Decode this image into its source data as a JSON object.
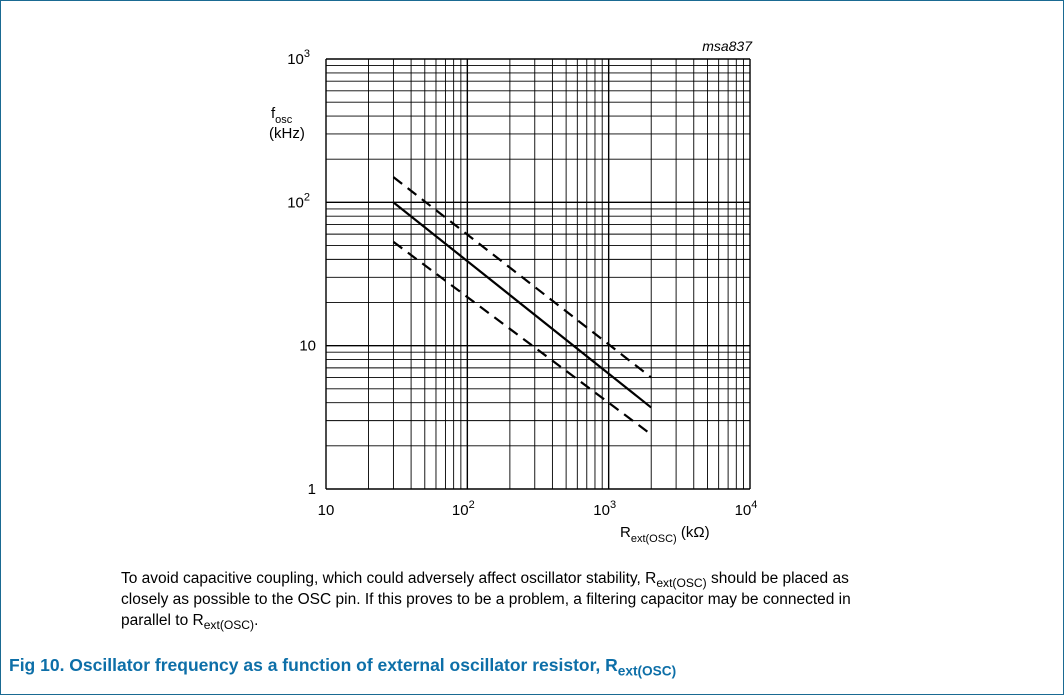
{
  "chart_data": {
    "type": "line",
    "id_label": "msa837",
    "ylabel_main": "f",
    "ylabel_sub": "osc",
    "ylabel_unit": "(kHz)",
    "xlabel_main": "R",
    "xlabel_sub": "ext(OSC)",
    "xlabel_unit": "(kΩ)",
    "x_scale": "log",
    "y_scale": "log",
    "xlim": [
      10,
      10000
    ],
    "ylim": [
      1,
      1000
    ],
    "grid": true,
    "x_ticks": [
      {
        "base": "10",
        "exp": ""
      },
      {
        "base": "10",
        "exp": "2"
      },
      {
        "base": "10",
        "exp": "3"
      },
      {
        "base": "10",
        "exp": "4"
      }
    ],
    "y_ticks": [
      {
        "base": "1",
        "exp": ""
      },
      {
        "base": "10",
        "exp": ""
      },
      {
        "base": "10",
        "exp": "2"
      },
      {
        "base": "10",
        "exp": "3"
      }
    ],
    "series": [
      {
        "style": "dashed",
        "points": [
          [
            30,
            150
          ],
          [
            2000,
            6
          ]
        ]
      },
      {
        "style": "solid",
        "points": [
          [
            30,
            100
          ],
          [
            2000,
            3.7
          ]
        ]
      },
      {
        "style": "dashed",
        "points": [
          [
            30,
            53
          ],
          [
            2000,
            2.4
          ]
        ]
      }
    ]
  },
  "note": {
    "part1": "To avoid capacitive coupling, which could adversely affect oscillator stability, R",
    "sub1": "ext(OSC)",
    "part2": " should be placed as closely as possible to the OSC pin. If this proves to be a problem, a filtering capacitor may be connected in parallel to R",
    "sub2": "ext(OSC)",
    "part3": "."
  },
  "caption": {
    "text": "Fig 10.   Oscillator frequency as a function of external oscillator resistor, R",
    "sub": "ext(OSC)"
  },
  "colors": {
    "frame": "#1a6a92",
    "caption": "#0d6fa8",
    "grid": "#000000"
  }
}
